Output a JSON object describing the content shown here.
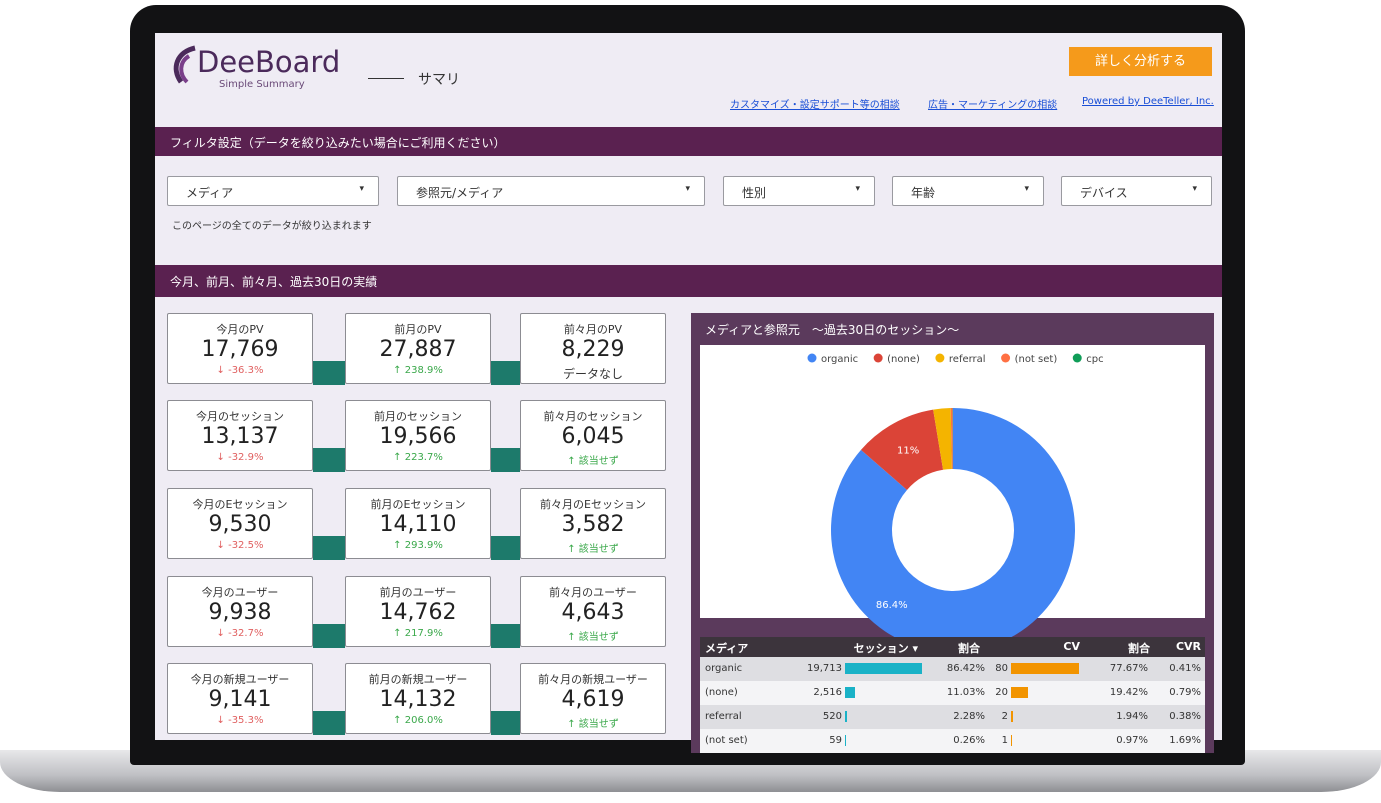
{
  "header": {
    "logo": "DeeBoard",
    "tagline": "Simple Summary",
    "page_title": "サマリ",
    "button": "詳しく分析する",
    "links": [
      "カスタマイズ・設定サポート等の相談",
      "広告・マーケティングの相談",
      "Powered by DeeTeller, Inc."
    ]
  },
  "filter": {
    "title": "フィルタ設定（データを絞り込みたい場合にご利用ください）",
    "dropdowns": [
      "メディア",
      "参照元/メディア",
      "性別",
      "年齢",
      "デバイス"
    ],
    "note": "このページの全てのデータが絞り込まれます"
  },
  "kpi_section": {
    "title": "今月、前月、前々月、過去30日の実績",
    "rows": [
      [
        {
          "label": "今月のPV",
          "value": "17,769",
          "change": "↓ -36.3%"
        },
        {
          "label": "前月のPV",
          "value": "27,887",
          "change": "↑ 238.9%"
        },
        {
          "label": "前々月のPV",
          "value": "8,229",
          "change": "データなし"
        }
      ],
      [
        {
          "label": "今月のセッション",
          "value": "13,137",
          "change": "↓ -32.9%"
        },
        {
          "label": "前月のセッション",
          "value": "19,566",
          "change": "↑ 223.7%"
        },
        {
          "label": "前々月のセッション",
          "value": "6,045",
          "change": "↑ 該当せず"
        }
      ],
      [
        {
          "label": "今月のEセッション",
          "value": "9,530",
          "change": "↓ -32.5%"
        },
        {
          "label": "前月のEセッション",
          "value": "14,110",
          "change": "↑ 293.9%"
        },
        {
          "label": "前々月のEセッション",
          "value": "3,582",
          "change": "↑ 該当せず"
        }
      ],
      [
        {
          "label": "今月のユーザー",
          "value": "9,938",
          "change": "↓ -32.7%"
        },
        {
          "label": "前月のユーザー",
          "value": "14,762",
          "change": "↑ 217.9%"
        },
        {
          "label": "前々月のユーザー",
          "value": "4,643",
          "change": "↑ 該当せず"
        }
      ],
      [
        {
          "label": "今月の新規ユーザー",
          "value": "9,141",
          "change": "↓ -35.3%"
        },
        {
          "label": "前月の新規ユーザー",
          "value": "14,132",
          "change": "↑ 206.0%"
        },
        {
          "label": "前々月の新規ユーザー",
          "value": "4,619",
          "change": "↑ 該当せず"
        }
      ]
    ]
  },
  "chart_data": {
    "type": "pie",
    "title": "メディアと参照元　～過去30日のセッション～",
    "donut": true,
    "categories": [
      "organic",
      "(none)",
      "referral",
      "(not set)",
      "cpc"
    ],
    "colors": [
      "#4285f4",
      "#db4437",
      "#f4b400",
      "#ff7043",
      "#0f9d58"
    ],
    "values": [
      86.4,
      11.0,
      2.3,
      0.26,
      0.04
    ],
    "value_labels": [
      "86.4%",
      "11%",
      null,
      null,
      null
    ]
  },
  "table": {
    "headers": [
      "メディア",
      "セッション ▾",
      "割合",
      "CV",
      "割合",
      "CVR"
    ],
    "rows": [
      {
        "media": "organic",
        "sessions": 19713,
        "sessions_label": "19,713",
        "share": "86.42%",
        "cv": 80,
        "cv_share": "77.67%",
        "cvr": "0.41%"
      },
      {
        "media": "(none)",
        "sessions": 2516,
        "sessions_label": "2,516",
        "share": "11.03%",
        "cv": 20,
        "cv_share": "19.42%",
        "cvr": "0.79%"
      },
      {
        "media": "referral",
        "sessions": 520,
        "sessions_label": "520",
        "share": "2.28%",
        "cv": 2,
        "cv_share": "1.94%",
        "cvr": "0.38%"
      },
      {
        "media": "(not set)",
        "sessions": 59,
        "sessions_label": "59",
        "share": "0.26%",
        "cv": 1,
        "cv_share": "0.97%",
        "cvr": "1.69%"
      }
    ]
  }
}
